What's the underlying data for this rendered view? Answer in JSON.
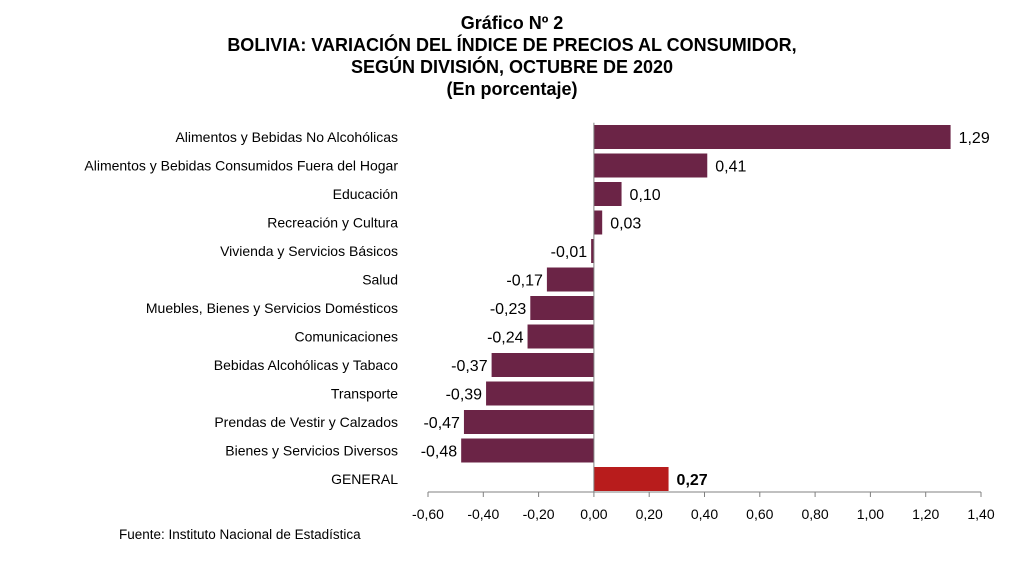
{
  "title": {
    "line1": "Gráfico Nº 2",
    "line2": "BOLIVIA: VARIACIÓN DEL ÍNDICE DE PRECIOS AL CONSUMIDOR,",
    "line3": "SEGÚN DIVISIÓN, OCTUBRE DE 2020",
    "line4": "(En porcentaje)"
  },
  "source": "Fuente: Instituto Nacional de Estadística",
  "colors": {
    "bar": "#6b2446",
    "highlight": "#b81c1c",
    "axis": "#808080"
  },
  "chart_data": {
    "type": "bar",
    "orientation": "horizontal",
    "categories": [
      "Alimentos y Bebidas No Alcohólicas",
      "Alimentos y Bebidas Consumidos Fuera del Hogar",
      "Educación",
      "Recreación y Cultura",
      "Vivienda y Servicios Básicos",
      "Salud",
      "Muebles, Bienes y Servicios Domésticos",
      "Comunicaciones",
      "Bebidas Alcohólicas y Tabaco",
      "Transporte",
      "Prendas de Vestir y Calzados",
      "Bienes y Servicios Diversos",
      "GENERAL"
    ],
    "values": [
      1.29,
      0.41,
      0.1,
      0.03,
      -0.01,
      -0.17,
      -0.23,
      -0.24,
      -0.37,
      -0.39,
      -0.47,
      -0.48,
      0.27
    ],
    "value_labels": [
      "1,29",
      "0,41",
      "0,10",
      "0,03",
      "-0,01",
      "-0,17",
      "-0,23",
      "-0,24",
      "-0,37",
      "-0,39",
      "-0,47",
      "-0,48",
      "0,27"
    ],
    "highlight_category": "GENERAL",
    "xlim": [
      -0.6,
      1.4
    ],
    "xticks": [
      -0.6,
      -0.4,
      -0.2,
      0,
      0.2,
      0.4,
      0.6,
      0.8,
      1.0,
      1.2,
      1.4
    ],
    "xtick_labels": [
      "-0,60",
      "-0,40",
      "-0,20",
      "0,00",
      "0,20",
      "0,40",
      "0,60",
      "0,80",
      "1,00",
      "1,20",
      "1,40"
    ],
    "grid": false,
    "legend": "none"
  }
}
